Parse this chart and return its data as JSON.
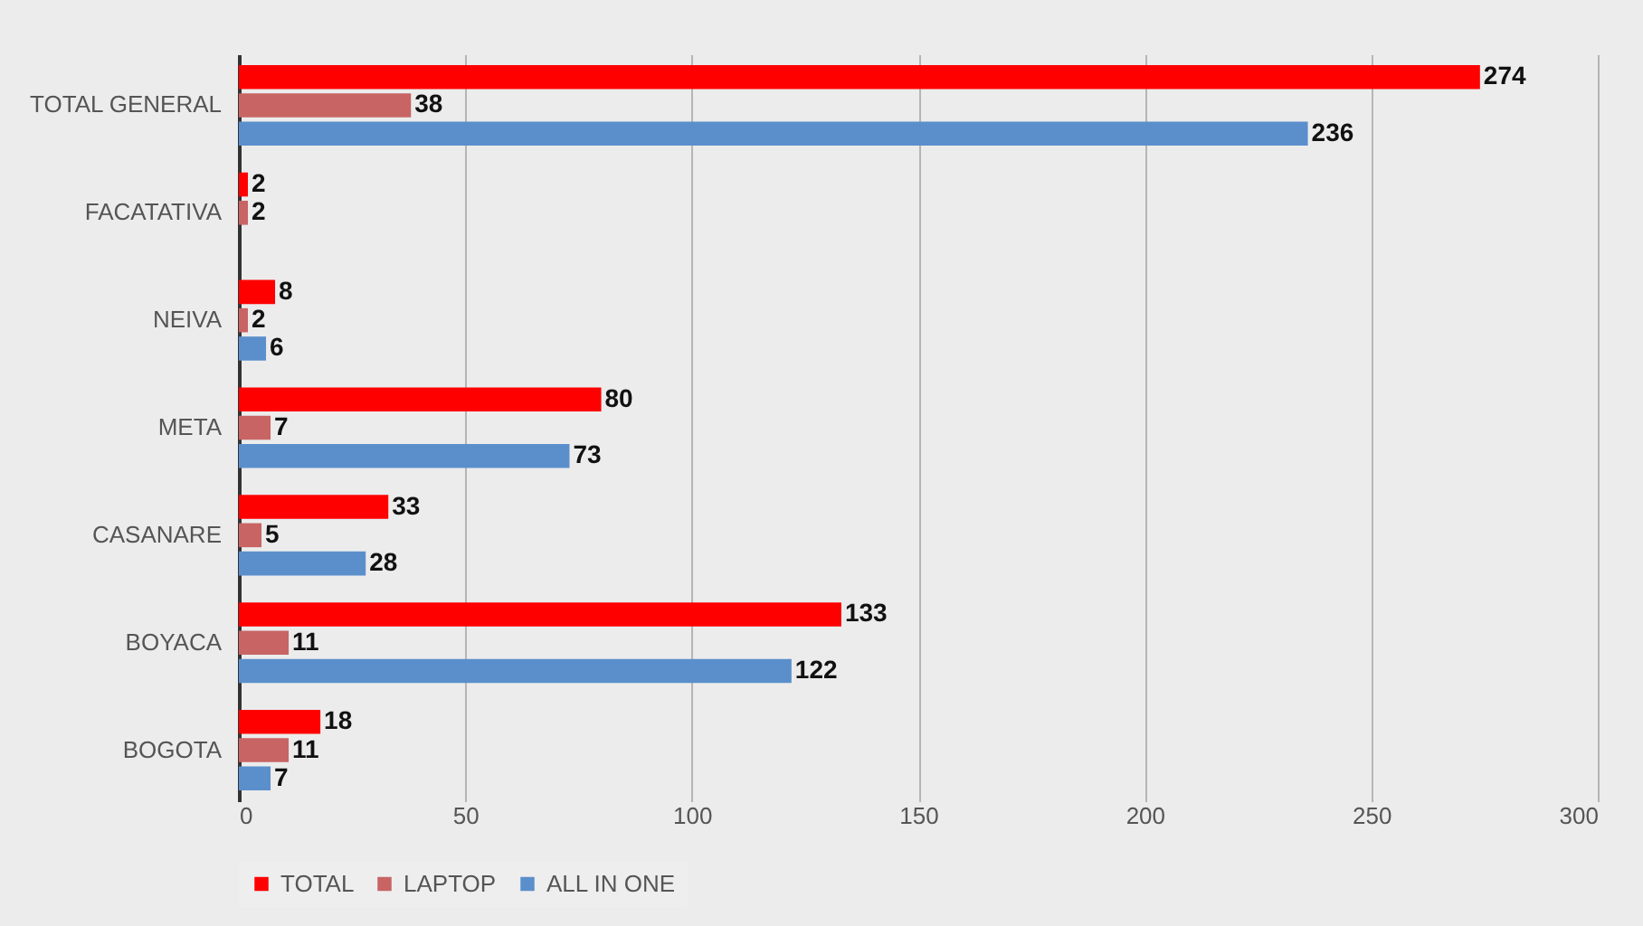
{
  "chart_data": {
    "type": "bar",
    "orientation": "horizontal",
    "categories": [
      "TOTAL GENERAL",
      "FACATATIVA",
      "NEIVA",
      "META",
      "CASANARE",
      "BOYACA",
      "BOGOTA"
    ],
    "series": [
      {
        "name": "TOTAL",
        "color": "#ff0000",
        "values": [
          274,
          2,
          8,
          80,
          33,
          133,
          18
        ]
      },
      {
        "name": "LAPTOP",
        "color": "#c86464",
        "values": [
          38,
          2,
          2,
          7,
          5,
          11,
          11
        ]
      },
      {
        "name": "ALL IN ONE",
        "color": "#5b8fcc",
        "values": [
          236,
          null,
          6,
          73,
          28,
          122,
          7
        ]
      }
    ],
    "xlim": [
      0,
      300
    ],
    "xticks": [
      0,
      50,
      100,
      150,
      200,
      250,
      300
    ],
    "grid": "x",
    "legend": "bottom",
    "data_labels": true
  }
}
